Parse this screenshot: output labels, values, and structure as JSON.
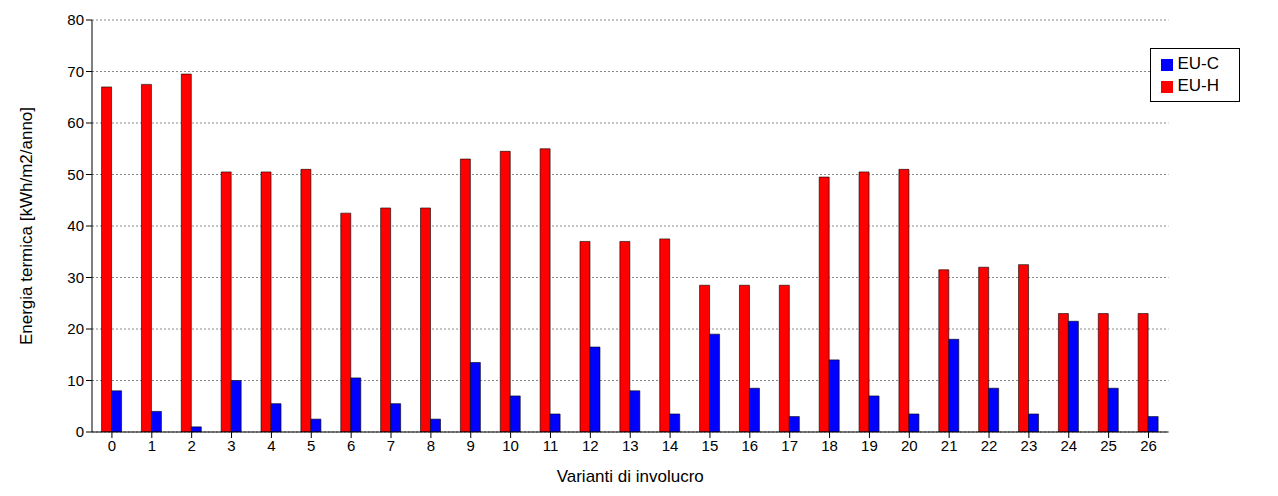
{
  "chart_data": {
    "type": "bar",
    "x_label": "Varianti di involucro",
    "y_label": "Energia termica [kWh/m2/anno]",
    "categories": [
      "0",
      "1",
      "2",
      "3",
      "4",
      "5",
      "6",
      "7",
      "8",
      "9",
      "10",
      "11",
      "12",
      "13",
      "14",
      "15",
      "16",
      "17",
      "18",
      "19",
      "20",
      "21",
      "22",
      "23",
      "24",
      "25",
      "26"
    ],
    "series": [
      {
        "name": "EU-H",
        "color": "#ff0000",
        "values": [
          67,
          67.5,
          69.5,
          50.5,
          50.5,
          51,
          42.5,
          43.5,
          43.5,
          53,
          54.5,
          55,
          37,
          37,
          37.5,
          28.5,
          28.5,
          28.5,
          49.5,
          50.5,
          51,
          31.5,
          32,
          32.5,
          23,
          23,
          23
        ]
      },
      {
        "name": "EU-C",
        "color": "#0000ff",
        "values": [
          8,
          4,
          1,
          10,
          5.5,
          2.5,
          10.5,
          5.5,
          2.5,
          13.5,
          7,
          3.5,
          16.5,
          8,
          3.5,
          19,
          8.5,
          3,
          14,
          7,
          3.5,
          18,
          8.5,
          3.5,
          21.5,
          8.5,
          3
        ]
      }
    ],
    "ylim": [
      0,
      80
    ],
    "yticks": [
      0,
      10,
      20,
      30,
      40,
      50,
      60,
      70,
      80
    ],
    "grid": true,
    "legend": "upper right"
  }
}
